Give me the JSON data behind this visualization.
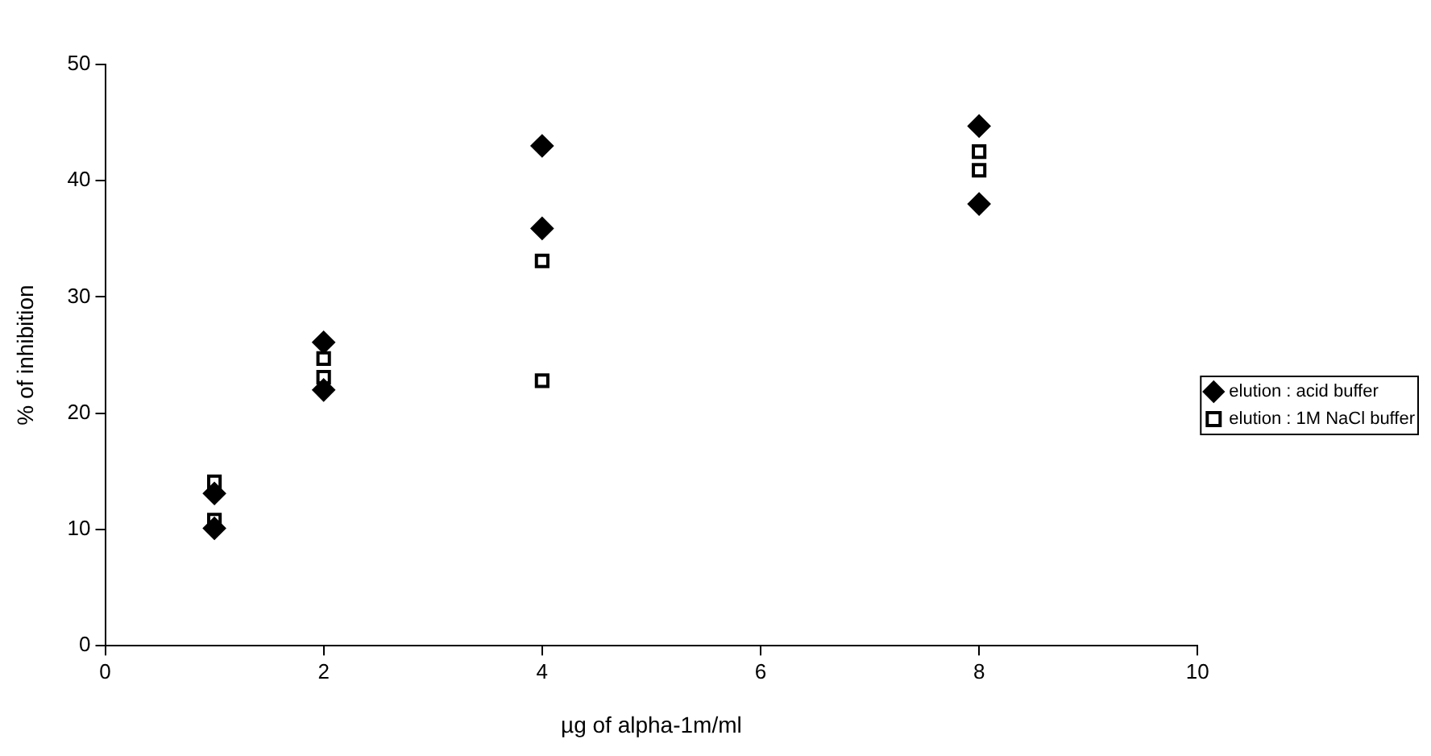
{
  "chart_data": {
    "type": "scatter",
    "xlabel": "µg of alpha-1m/ml",
    "ylabel": "% of inhibition",
    "xlim": [
      0,
      10
    ],
    "xticks": [
      0,
      2,
      4,
      6,
      8,
      10
    ],
    "ylim": [
      0,
      50
    ],
    "yticks": [
      0,
      10,
      20,
      30,
      40,
      50
    ],
    "grid": false,
    "legend": "right",
    "series": [
      {
        "name": "elution : acid buffer",
        "color": "#000000",
        "marker": "diamond",
        "x": [
          1,
          1,
          2,
          2,
          4,
          4,
          8,
          8
        ],
        "values": [
          13.1,
          10.1,
          26.1,
          22.0,
          43.0,
          35.9,
          44.7,
          38.0
        ]
      },
      {
        "name": "elution : 1M NaCl buffer",
        "color": "#000000",
        "marker": "square",
        "x": [
          1,
          1,
          2,
          2,
          4,
          4,
          8,
          8
        ],
        "values": [
          14.1,
          10.8,
          24.7,
          23.1,
          33.1,
          22.8,
          42.5,
          40.9
        ]
      }
    ]
  }
}
